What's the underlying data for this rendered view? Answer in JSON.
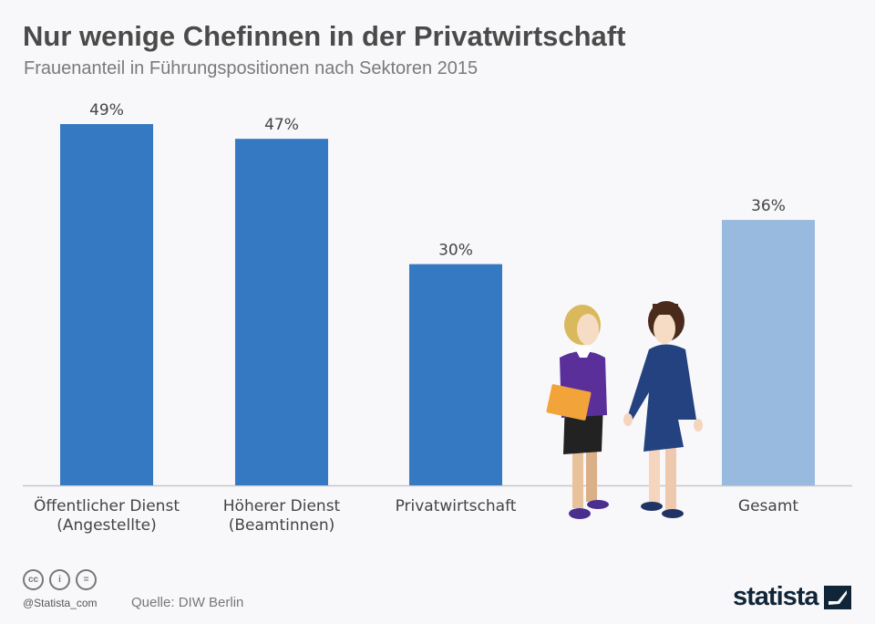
{
  "title": "Nur wenige Chefinnen in der Privatwirtschaft",
  "subtitle": "Frauenanteil in Führungspositionen nach Sektoren 2015",
  "chart_data": {
    "type": "bar",
    "title": "Nur wenige Chefinnen in der Privatwirtschaft",
    "subtitle": "Frauenanteil in Führungspositionen nach Sektoren 2015",
    "categories": [
      [
        "Öffentlicher Dienst",
        "(Angestellte)"
      ],
      [
        "Höherer Dienst",
        "(Beamtinnen)"
      ],
      [
        "Privatwirtschaft"
      ],
      [
        "Gesamt"
      ]
    ],
    "values": [
      49,
      47,
      30,
      36
    ],
    "labels": [
      "49%",
      "47%",
      "30%",
      "36%"
    ],
    "colors": [
      "#3579c2",
      "#3579c2",
      "#3579c2",
      "#98badf"
    ],
    "ylim": [
      0,
      49
    ],
    "grid": false
  },
  "footer": {
    "handle": "@Statista_com",
    "source": "Quelle: DIW Berlin",
    "logo": "statista",
    "cc_icons": [
      "cc",
      "by",
      "nd"
    ]
  }
}
